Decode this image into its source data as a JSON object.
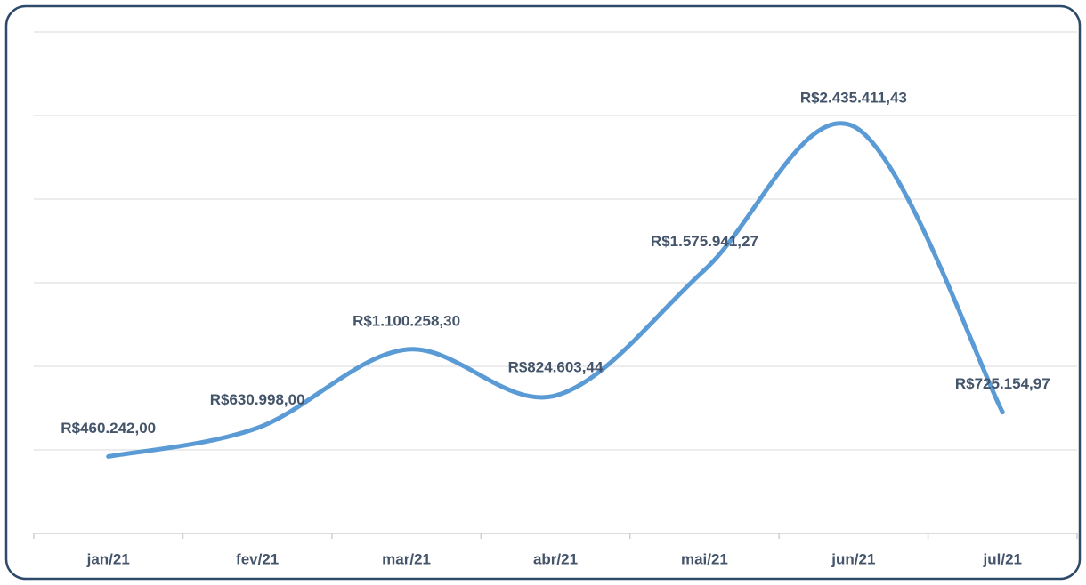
{
  "chart_data": {
    "type": "line",
    "categories": [
      "jan/21",
      "fev/21",
      "mar/21",
      "abr/21",
      "mai/21",
      "jun/21",
      "jul/21"
    ],
    "series": [
      {
        "color": "#5b9bd5",
        "values": [
          460242.0,
          630998.0,
          1100258.3,
          824603.44,
          1575941.27,
          2435411.43,
          725154.97
        ],
        "value_labels": [
          "R$460.242,00",
          "R$630.998,00",
          "R$1.100.258,30",
          "R$824.603,44",
          "R$1.575.941,27",
          "R$2.435.411,43",
          "R$725.154,97"
        ]
      }
    ],
    "ylim": [
      0,
      3000000
    ],
    "yticks": [
      0,
      500000,
      1000000,
      1500000,
      2000000,
      2500000,
      3000000
    ],
    "grid": true,
    "smooth": true
  }
}
